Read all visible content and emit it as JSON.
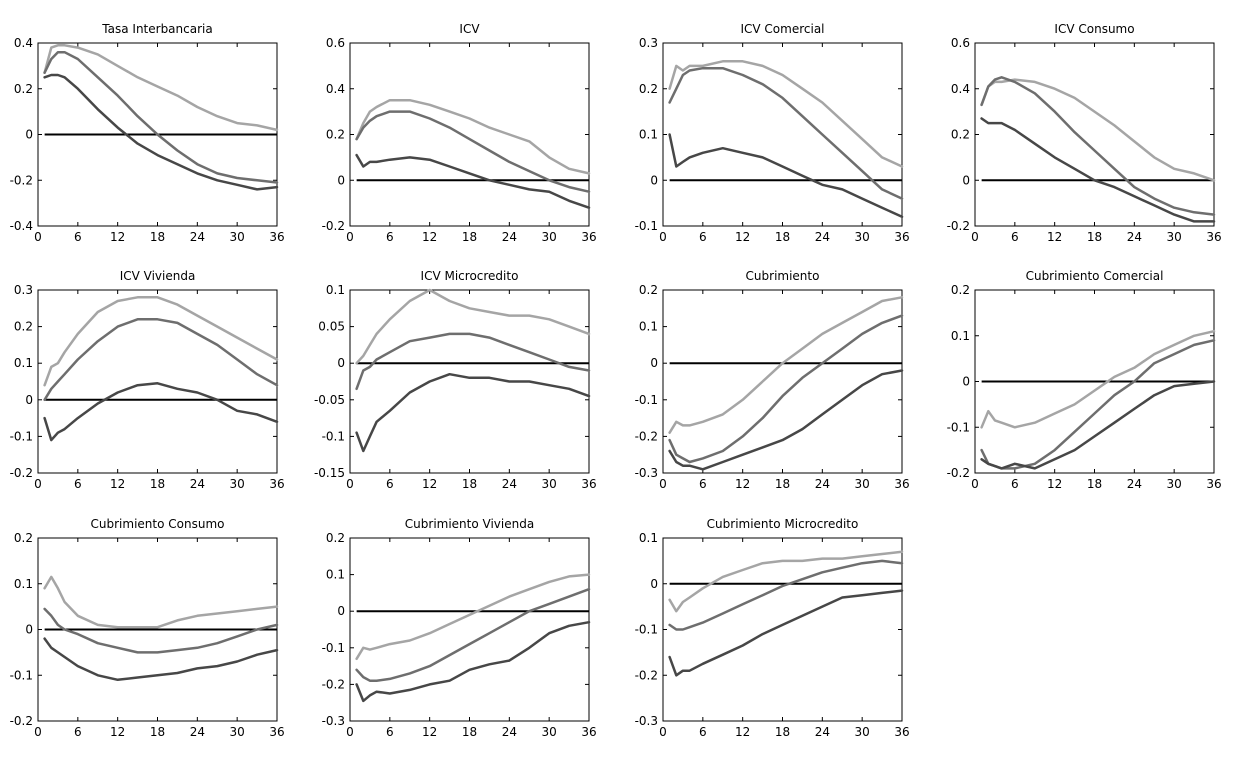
{
  "colors": {
    "upper_band": "#a5a5a5",
    "median": "#6e6e6e",
    "lower_band": "#474747",
    "zero_line": "#000000",
    "frame": "#000000"
  },
  "chart_data": [
    {
      "type": "line",
      "title": "Tasa Interbancaria",
      "xlim": [
        0,
        36
      ],
      "ylim": [
        -0.4,
        0.4
      ],
      "xticks": [
        0,
        6,
        12,
        18,
        24,
        30,
        36
      ],
      "yticks": [
        -0.4,
        -0.2,
        0,
        0.2,
        0.4
      ],
      "ytick_labels": [
        "-0.4",
        "-0.2",
        "0",
        "0.2",
        "0.4"
      ],
      "x": [
        1,
        2,
        3,
        4,
        6,
        9,
        12,
        15,
        18,
        21,
        24,
        27,
        30,
        33,
        36
      ],
      "series": [
        {
          "values": [
            0.27,
            0.38,
            0.39,
            0.39,
            0.38,
            0.35,
            0.3,
            0.25,
            0.21,
            0.17,
            0.12,
            0.08,
            0.05,
            0.04,
            0.02
          ]
        },
        {
          "values": [
            0.27,
            0.33,
            0.36,
            0.36,
            0.33,
            0.25,
            0.17,
            0.08,
            0.0,
            -0.07,
            -0.13,
            -0.17,
            -0.19,
            -0.2,
            -0.21
          ]
        },
        {
          "values": [
            0.25,
            0.26,
            0.26,
            0.25,
            0.2,
            0.11,
            0.03,
            -0.04,
            -0.09,
            -0.13,
            -0.17,
            -0.2,
            -0.22,
            -0.24,
            -0.23
          ]
        }
      ]
    },
    {
      "type": "line",
      "title": "ICV",
      "xlim": [
        0,
        36
      ],
      "ylim": [
        -0.2,
        0.6
      ],
      "xticks": [
        0,
        6,
        12,
        18,
        24,
        30,
        36
      ],
      "yticks": [
        -0.2,
        0,
        0.2,
        0.4,
        0.6
      ],
      "ytick_labels": [
        "-0.2",
        "0",
        "0.2",
        "0.4",
        "0.6"
      ],
      "x": [
        1,
        2,
        3,
        4,
        6,
        9,
        12,
        15,
        18,
        21,
        24,
        27,
        30,
        33,
        36
      ],
      "series": [
        {
          "values": [
            0.18,
            0.25,
            0.3,
            0.32,
            0.35,
            0.35,
            0.33,
            0.3,
            0.27,
            0.23,
            0.2,
            0.17,
            0.1,
            0.05,
            0.03
          ]
        },
        {
          "values": [
            0.18,
            0.23,
            0.26,
            0.28,
            0.3,
            0.3,
            0.27,
            0.23,
            0.18,
            0.13,
            0.08,
            0.04,
            0.0,
            -0.03,
            -0.05
          ]
        },
        {
          "values": [
            0.11,
            0.06,
            0.08,
            0.08,
            0.09,
            0.1,
            0.09,
            0.06,
            0.03,
            0.0,
            -0.02,
            -0.04,
            -0.05,
            -0.09,
            -0.12
          ]
        }
      ]
    },
    {
      "type": "line",
      "title": "ICV Comercial",
      "xlim": [
        0,
        36
      ],
      "ylim": [
        -0.1,
        0.3
      ],
      "xticks": [
        0,
        6,
        12,
        18,
        24,
        30,
        36
      ],
      "yticks": [
        -0.1,
        0,
        0.1,
        0.2,
        0.3
      ],
      "ytick_labels": [
        "-0.1",
        "0",
        "0.1",
        "0.2",
        "0.3"
      ],
      "x": [
        1,
        2,
        3,
        4,
        6,
        9,
        12,
        15,
        18,
        21,
        24,
        27,
        30,
        33,
        36
      ],
      "series": [
        {
          "values": [
            0.2,
            0.25,
            0.24,
            0.25,
            0.25,
            0.26,
            0.26,
            0.25,
            0.23,
            0.2,
            0.17,
            0.13,
            0.09,
            0.05,
            0.03
          ]
        },
        {
          "values": [
            0.17,
            0.2,
            0.23,
            0.24,
            0.245,
            0.245,
            0.23,
            0.21,
            0.18,
            0.14,
            0.1,
            0.06,
            0.02,
            -0.02,
            -0.04
          ]
        },
        {
          "values": [
            0.1,
            0.03,
            0.04,
            0.05,
            0.06,
            0.07,
            0.06,
            0.05,
            0.03,
            0.01,
            -0.01,
            -0.02,
            -0.04,
            -0.06,
            -0.08
          ]
        }
      ]
    },
    {
      "type": "line",
      "title": "ICV Consumo",
      "xlim": [
        0,
        36
      ],
      "ylim": [
        -0.2,
        0.6
      ],
      "xticks": [
        0,
        6,
        12,
        18,
        24,
        30,
        36
      ],
      "yticks": [
        -0.2,
        0,
        0.2,
        0.4,
        0.6
      ],
      "ytick_labels": [
        "-0.2",
        "0",
        "0.2",
        "0.4",
        "0.6"
      ],
      "x": [
        1,
        2,
        3,
        4,
        6,
        9,
        12,
        15,
        18,
        21,
        24,
        27,
        30,
        33,
        36
      ],
      "series": [
        {
          "values": [
            0.33,
            0.41,
            0.43,
            0.43,
            0.44,
            0.43,
            0.4,
            0.36,
            0.3,
            0.24,
            0.17,
            0.1,
            0.05,
            0.03,
            0.0
          ]
        },
        {
          "values": [
            0.33,
            0.41,
            0.44,
            0.45,
            0.43,
            0.38,
            0.3,
            0.21,
            0.13,
            0.05,
            -0.03,
            -0.08,
            -0.12,
            -0.14,
            -0.15
          ]
        },
        {
          "values": [
            0.27,
            0.25,
            0.25,
            0.25,
            0.22,
            0.16,
            0.1,
            0.05,
            0.0,
            -0.03,
            -0.07,
            -0.11,
            -0.15,
            -0.18,
            -0.18
          ]
        }
      ]
    },
    {
      "type": "line",
      "title": "ICV Vivienda",
      "xlim": [
        0,
        36
      ],
      "ylim": [
        -0.2,
        0.3
      ],
      "xticks": [
        0,
        6,
        12,
        18,
        24,
        30,
        36
      ],
      "yticks": [
        -0.2,
        -0.1,
        0,
        0.1,
        0.2,
        0.3
      ],
      "ytick_labels": [
        "-0.2",
        "-0.1",
        "0",
        "0.1",
        "0.2",
        "0.3"
      ],
      "x": [
        1,
        2,
        3,
        4,
        6,
        9,
        12,
        15,
        18,
        21,
        24,
        27,
        30,
        33,
        36
      ],
      "series": [
        {
          "values": [
            0.04,
            0.09,
            0.1,
            0.13,
            0.18,
            0.24,
            0.27,
            0.28,
            0.28,
            0.26,
            0.23,
            0.2,
            0.17,
            0.14,
            0.11
          ]
        },
        {
          "values": [
            0.0,
            0.03,
            0.05,
            0.07,
            0.11,
            0.16,
            0.2,
            0.22,
            0.22,
            0.21,
            0.18,
            0.15,
            0.11,
            0.07,
            0.04
          ]
        },
        {
          "values": [
            -0.05,
            -0.11,
            -0.09,
            -0.08,
            -0.05,
            -0.01,
            0.02,
            0.04,
            0.045,
            0.03,
            0.02,
            0.0,
            -0.03,
            -0.04,
            -0.06
          ]
        }
      ]
    },
    {
      "type": "line",
      "title": "ICV Microcredito",
      "xlim": [
        0,
        36
      ],
      "ylim": [
        -0.15,
        0.1
      ],
      "xticks": [
        0,
        6,
        12,
        18,
        24,
        30,
        36
      ],
      "yticks": [
        -0.15,
        -0.1,
        -0.05,
        0,
        0.05,
        0.1
      ],
      "ytick_labels": [
        "-0.15",
        "-0.1",
        "-0.05",
        "0",
        "0.05",
        "0.1"
      ],
      "x": [
        1,
        2,
        3,
        4,
        6,
        9,
        12,
        15,
        18,
        21,
        24,
        27,
        30,
        33,
        36
      ],
      "series": [
        {
          "values": [
            0.0,
            0.01,
            0.025,
            0.04,
            0.06,
            0.085,
            0.1,
            0.085,
            0.075,
            0.07,
            0.065,
            0.065,
            0.06,
            0.05,
            0.04
          ]
        },
        {
          "values": [
            -0.035,
            -0.01,
            -0.005,
            0.005,
            0.015,
            0.03,
            0.035,
            0.04,
            0.04,
            0.035,
            0.025,
            0.015,
            0.005,
            -0.005,
            -0.01
          ]
        },
        {
          "values": [
            -0.095,
            -0.12,
            -0.1,
            -0.08,
            -0.065,
            -0.04,
            -0.025,
            -0.015,
            -0.02,
            -0.02,
            -0.025,
            -0.025,
            -0.03,
            -0.035,
            -0.045
          ]
        }
      ]
    },
    {
      "type": "line",
      "title": "Cubrimiento",
      "xlim": [
        0,
        36
      ],
      "ylim": [
        -0.3,
        0.2
      ],
      "xticks": [
        0,
        6,
        12,
        18,
        24,
        30,
        36
      ],
      "yticks": [
        -0.3,
        -0.2,
        -0.1,
        0,
        0.1,
        0.2
      ],
      "ytick_labels": [
        "-0.3",
        "-0.2",
        "-0.1",
        "0",
        "0.1",
        "0.2"
      ],
      "x": [
        1,
        2,
        3,
        4,
        6,
        9,
        12,
        15,
        18,
        21,
        24,
        27,
        30,
        33,
        36
      ],
      "series": [
        {
          "values": [
            -0.19,
            -0.16,
            -0.17,
            -0.17,
            -0.16,
            -0.14,
            -0.1,
            -0.05,
            0.0,
            0.04,
            0.08,
            0.11,
            0.14,
            0.17,
            0.18
          ]
        },
        {
          "values": [
            -0.21,
            -0.25,
            -0.26,
            -0.27,
            -0.26,
            -0.24,
            -0.2,
            -0.15,
            -0.09,
            -0.04,
            0.0,
            0.04,
            0.08,
            0.11,
            0.13
          ]
        },
        {
          "values": [
            -0.24,
            -0.27,
            -0.28,
            -0.28,
            -0.29,
            -0.27,
            -0.25,
            -0.23,
            -0.21,
            -0.18,
            -0.14,
            -0.1,
            -0.06,
            -0.03,
            -0.02
          ]
        }
      ]
    },
    {
      "type": "line",
      "title": "Cubrimiento Comercial",
      "xlim": [
        0,
        36
      ],
      "ylim": [
        -0.2,
        0.2
      ],
      "xticks": [
        0,
        6,
        12,
        18,
        24,
        30,
        36
      ],
      "yticks": [
        -0.2,
        -0.1,
        0,
        0.1,
        0.2
      ],
      "ytick_labels": [
        "-0.2",
        "-0.1",
        "0",
        "0.1",
        "0.2"
      ],
      "x": [
        1,
        2,
        3,
        4,
        6,
        9,
        12,
        15,
        18,
        21,
        24,
        27,
        30,
        33,
        36
      ],
      "series": [
        {
          "values": [
            -0.1,
            -0.065,
            -0.085,
            -0.09,
            -0.1,
            -0.09,
            -0.07,
            -0.05,
            -0.02,
            0.01,
            0.03,
            0.06,
            0.08,
            0.1,
            0.11
          ]
        },
        {
          "values": [
            -0.15,
            -0.18,
            -0.185,
            -0.19,
            -0.19,
            -0.18,
            -0.15,
            -0.11,
            -0.07,
            -0.03,
            0.0,
            0.04,
            0.06,
            0.08,
            0.09
          ]
        },
        {
          "values": [
            -0.17,
            -0.18,
            -0.185,
            -0.19,
            -0.18,
            -0.19,
            -0.17,
            -0.15,
            -0.12,
            -0.09,
            -0.06,
            -0.03,
            -0.01,
            -0.005,
            0.0
          ]
        }
      ]
    },
    {
      "type": "line",
      "title": "Cubrimiento Consumo",
      "xlim": [
        0,
        36
      ],
      "ylim": [
        -0.2,
        0.2
      ],
      "xticks": [
        0,
        6,
        12,
        18,
        24,
        30,
        36
      ],
      "yticks": [
        -0.2,
        -0.1,
        0,
        0.1,
        0.2
      ],
      "ytick_labels": [
        "-0.2",
        "-0.1",
        "0",
        "0.1",
        "0.2"
      ],
      "x": [
        1,
        2,
        3,
        4,
        6,
        9,
        12,
        15,
        18,
        21,
        24,
        27,
        30,
        33,
        36
      ],
      "series": [
        {
          "values": [
            0.09,
            0.115,
            0.09,
            0.06,
            0.03,
            0.01,
            0.005,
            0.005,
            0.005,
            0.02,
            0.03,
            0.035,
            0.04,
            0.045,
            0.05
          ]
        },
        {
          "values": [
            0.045,
            0.03,
            0.01,
            0.0,
            -0.01,
            -0.03,
            -0.04,
            -0.05,
            -0.05,
            -0.045,
            -0.04,
            -0.03,
            -0.015,
            0.0,
            0.01
          ]
        },
        {
          "values": [
            -0.02,
            -0.04,
            -0.05,
            -0.06,
            -0.08,
            -0.1,
            -0.11,
            -0.105,
            -0.1,
            -0.095,
            -0.085,
            -0.08,
            -0.07,
            -0.055,
            -0.045
          ]
        }
      ]
    },
    {
      "type": "line",
      "title": "Cubrimiento Vivienda",
      "xlim": [
        0,
        36
      ],
      "ylim": [
        -0.3,
        0.2
      ],
      "xticks": [
        0,
        6,
        12,
        18,
        24,
        30,
        36
      ],
      "yticks": [
        -0.3,
        -0.2,
        -0.1,
        0,
        0.1,
        0.2
      ],
      "ytick_labels": [
        "-0.3",
        "-0.2",
        "-0.1",
        "0",
        "0.1",
        "0.2"
      ],
      "x": [
        1,
        2,
        3,
        4,
        6,
        9,
        12,
        15,
        18,
        21,
        24,
        27,
        30,
        33,
        36
      ],
      "series": [
        {
          "values": [
            -0.13,
            -0.1,
            -0.105,
            -0.1,
            -0.09,
            -0.08,
            -0.06,
            -0.035,
            -0.01,
            0.015,
            0.04,
            0.06,
            0.08,
            0.095,
            0.1
          ]
        },
        {
          "values": [
            -0.16,
            -0.18,
            -0.19,
            -0.19,
            -0.185,
            -0.17,
            -0.15,
            -0.12,
            -0.09,
            -0.06,
            -0.03,
            0.0,
            0.02,
            0.04,
            0.06
          ]
        },
        {
          "values": [
            -0.2,
            -0.245,
            -0.23,
            -0.22,
            -0.225,
            -0.215,
            -0.2,
            -0.19,
            -0.16,
            -0.145,
            -0.135,
            -0.1,
            -0.06,
            -0.04,
            -0.03
          ]
        }
      ]
    },
    {
      "type": "line",
      "title": "Cubrimiento Microcredito",
      "xlim": [
        0,
        36
      ],
      "ylim": [
        -0.3,
        0.1
      ],
      "xticks": [
        0,
        6,
        12,
        18,
        24,
        30,
        36
      ],
      "yticks": [
        -0.3,
        -0.2,
        -0.1,
        0,
        0.1
      ],
      "ytick_labels": [
        "-0.3",
        "-0.2",
        "-0.1",
        "0",
        "0.1"
      ],
      "x": [
        1,
        2,
        3,
        4,
        6,
        9,
        12,
        15,
        18,
        21,
        24,
        27,
        30,
        33,
        36
      ],
      "series": [
        {
          "values": [
            -0.035,
            -0.06,
            -0.04,
            -0.03,
            -0.01,
            0.015,
            0.03,
            0.045,
            0.05,
            0.05,
            0.055,
            0.055,
            0.06,
            0.065,
            0.07
          ]
        },
        {
          "values": [
            -0.09,
            -0.1,
            -0.1,
            -0.095,
            -0.085,
            -0.065,
            -0.045,
            -0.025,
            -0.005,
            0.01,
            0.025,
            0.035,
            0.045,
            0.05,
            0.045
          ]
        },
        {
          "values": [
            -0.16,
            -0.2,
            -0.19,
            -0.19,
            -0.175,
            -0.155,
            -0.135,
            -0.11,
            -0.09,
            -0.07,
            -0.05,
            -0.03,
            -0.025,
            -0.02,
            -0.015
          ]
        }
      ]
    }
  ]
}
